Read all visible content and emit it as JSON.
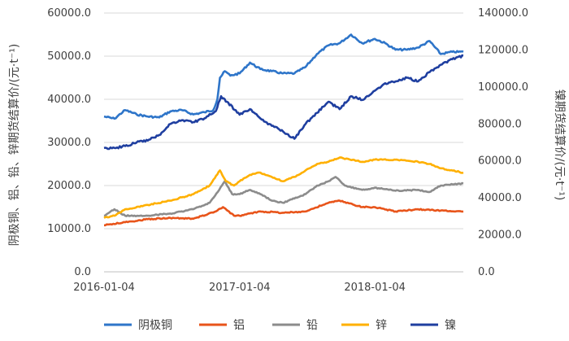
{
  "chart_data": {
    "type": "line",
    "title": "",
    "x_tick_labels": [
      "2016-01-04",
      "2017-01-04",
      "2018-01-04"
    ],
    "x_tick_dates": [
      "2016-01-04",
      "2017-01-04",
      "2018-01-04"
    ],
    "x_range": [
      "2016-01-04",
      "2018-08-31"
    ],
    "left_axis": {
      "label": "阴极铜、铝、铅、锌期货结算价/(元·t⁻¹)",
      "range": [
        0,
        60000
      ],
      "ticks": [
        "0.0",
        "10000.0",
        "20000.0",
        "30000.0",
        "40000.0",
        "50000.0",
        "60000.0"
      ]
    },
    "right_axis": {
      "label": "镍期货结算价/(元·t⁻¹)",
      "range": [
        0,
        140000
      ],
      "ticks": [
        "0.0",
        "20000.0",
        "40000.0",
        "60000.0",
        "80000.0",
        "100000.0",
        "120000.0",
        "140000.0"
      ]
    },
    "grid": true,
    "legend_position": "bottom",
    "series": [
      {
        "name": "阴极铜",
        "axis": "left",
        "color": "#2E75C9",
        "points": [
          [
            "2016-01-04",
            36000
          ],
          [
            "2016-02-01",
            35500
          ],
          [
            "2016-03-01",
            37500
          ],
          [
            "2016-04-01",
            36500
          ],
          [
            "2016-05-01",
            36000
          ],
          [
            "2016-06-01",
            35800
          ],
          [
            "2016-07-01",
            37200
          ],
          [
            "2016-08-01",
            37500
          ],
          [
            "2016-09-01",
            36500
          ],
          [
            "2016-10-01",
            37000
          ],
          [
            "2016-10-25",
            37500
          ],
          [
            "2016-11-05",
            40000
          ],
          [
            "2016-11-12",
            45000
          ],
          [
            "2016-11-25",
            46500
          ],
          [
            "2016-12-10",
            45500
          ],
          [
            "2017-01-04",
            46000
          ],
          [
            "2017-02-01",
            48500
          ],
          [
            "2017-03-01",
            47000
          ],
          [
            "2017-04-01",
            46500
          ],
          [
            "2017-05-01",
            46000
          ],
          [
            "2017-06-01",
            46000
          ],
          [
            "2017-07-01",
            47500
          ],
          [
            "2017-08-01",
            50500
          ],
          [
            "2017-09-01",
            52500
          ],
          [
            "2017-10-01",
            53000
          ],
          [
            "2017-11-01",
            55000
          ],
          [
            "2017-12-01",
            53000
          ],
          [
            "2018-01-04",
            54000
          ],
          [
            "2018-02-01",
            53000
          ],
          [
            "2018-03-01",
            51500
          ],
          [
            "2018-04-01",
            51500
          ],
          [
            "2018-05-01",
            52000
          ],
          [
            "2018-06-01",
            53500
          ],
          [
            "2018-07-01",
            50500
          ],
          [
            "2018-08-01",
            51000
          ],
          [
            "2018-08-31",
            51000
          ]
        ]
      },
      {
        "name": "铝",
        "axis": "left",
        "color": "#E8541A",
        "points": [
          [
            "2016-01-04",
            10800
          ],
          [
            "2016-03-01",
            11500
          ],
          [
            "2016-05-01",
            12200
          ],
          [
            "2016-07-01",
            12500
          ],
          [
            "2016-09-01",
            12300
          ],
          [
            "2016-11-01",
            14000
          ],
          [
            "2016-11-20",
            15000
          ],
          [
            "2016-12-20",
            13000
          ],
          [
            "2017-01-04",
            13000
          ],
          [
            "2017-03-01",
            14000
          ],
          [
            "2017-05-01",
            13700
          ],
          [
            "2017-07-01",
            14000
          ],
          [
            "2017-09-01",
            16000
          ],
          [
            "2017-10-01",
            16500
          ],
          [
            "2017-12-01",
            15000
          ],
          [
            "2018-01-04",
            15000
          ],
          [
            "2018-03-01",
            14000
          ],
          [
            "2018-05-01",
            14500
          ],
          [
            "2018-07-01",
            14200
          ],
          [
            "2018-08-31",
            14000
          ]
        ]
      },
      {
        "name": "铅",
        "axis": "left",
        "color": "#8C8C8C",
        "points": [
          [
            "2016-01-04",
            13000
          ],
          [
            "2016-02-01",
            14500
          ],
          [
            "2016-03-01",
            13000
          ],
          [
            "2016-05-01",
            13000
          ],
          [
            "2016-07-01",
            13500
          ],
          [
            "2016-09-01",
            14500
          ],
          [
            "2016-10-15",
            16000
          ],
          [
            "2016-11-10",
            19000
          ],
          [
            "2016-11-25",
            21000
          ],
          [
            "2016-12-15",
            18000
          ],
          [
            "2017-01-04",
            18000
          ],
          [
            "2017-02-01",
            19000
          ],
          [
            "2017-03-01",
            18000
          ],
          [
            "2017-04-01",
            16500
          ],
          [
            "2017-05-01",
            16000
          ],
          [
            "2017-06-01",
            17000
          ],
          [
            "2017-07-01",
            18000
          ],
          [
            "2017-08-01",
            20000
          ],
          [
            "2017-09-01",
            21000
          ],
          [
            "2017-09-20",
            22000
          ],
          [
            "2017-10-15",
            20000
          ],
          [
            "2017-12-01",
            19000
          ],
          [
            "2018-01-04",
            19500
          ],
          [
            "2018-03-01",
            18800
          ],
          [
            "2018-05-01",
            19000
          ],
          [
            "2018-06-01",
            18500
          ],
          [
            "2018-07-01",
            20000
          ],
          [
            "2018-08-31",
            20500
          ]
        ]
      },
      {
        "name": "锌",
        "axis": "left",
        "color": "#FFB000",
        "points": [
          [
            "2016-01-04",
            12500
          ],
          [
            "2016-02-01",
            13000
          ],
          [
            "2016-03-01",
            14500
          ],
          [
            "2016-05-01",
            15500
          ],
          [
            "2016-07-01",
            16500
          ],
          [
            "2016-09-01",
            18000
          ],
          [
            "2016-10-15",
            20000
          ],
          [
            "2016-11-12",
            23500
          ],
          [
            "2016-11-28",
            21000
          ],
          [
            "2016-12-20",
            20000
          ],
          [
            "2017-01-04",
            21000
          ],
          [
            "2017-02-01",
            22500
          ],
          [
            "2017-03-01",
            23000
          ],
          [
            "2017-04-01",
            22000
          ],
          [
            "2017-05-01",
            21000
          ],
          [
            "2017-06-01",
            22000
          ],
          [
            "2017-07-01",
            23500
          ],
          [
            "2017-08-01",
            25000
          ],
          [
            "2017-09-01",
            25500
          ],
          [
            "2017-10-01",
            26500
          ],
          [
            "2017-12-01",
            25500
          ],
          [
            "2018-01-04",
            26000
          ],
          [
            "2018-03-01",
            26000
          ],
          [
            "2018-05-01",
            25500
          ],
          [
            "2018-06-01",
            25000
          ],
          [
            "2018-07-01",
            24000
          ],
          [
            "2018-08-31",
            23000
          ]
        ]
      },
      {
        "name": "镍",
        "axis": "right",
        "color": "#1F3FA0",
        "points": [
          [
            "2016-01-04",
            67000
          ],
          [
            "2016-02-01",
            67000
          ],
          [
            "2016-03-01",
            68000
          ],
          [
            "2016-04-01",
            70000
          ],
          [
            "2016-05-01",
            71000
          ],
          [
            "2016-06-01",
            74000
          ],
          [
            "2016-07-01",
            80000
          ],
          [
            "2016-08-01",
            82000
          ],
          [
            "2016-09-01",
            81000
          ],
          [
            "2016-10-01",
            83000
          ],
          [
            "2016-11-01",
            87000
          ],
          [
            "2016-11-15",
            95000
          ],
          [
            "2016-12-01",
            92000
          ],
          [
            "2017-01-04",
            85000
          ],
          [
            "2017-02-01",
            88000
          ],
          [
            "2017-03-01",
            83000
          ],
          [
            "2017-04-01",
            79000
          ],
          [
            "2017-05-01",
            76000
          ],
          [
            "2017-06-01",
            72000
          ],
          [
            "2017-07-01",
            80000
          ],
          [
            "2017-08-01",
            86000
          ],
          [
            "2017-09-01",
            92000
          ],
          [
            "2017-10-01",
            88000
          ],
          [
            "2017-11-01",
            95000
          ],
          [
            "2017-12-01",
            93000
          ],
          [
            "2018-01-04",
            98000
          ],
          [
            "2018-02-01",
            102000
          ],
          [
            "2018-03-01",
            103000
          ],
          [
            "2018-04-01",
            105000
          ],
          [
            "2018-05-01",
            103000
          ],
          [
            "2018-06-01",
            108000
          ],
          [
            "2018-07-01",
            112000
          ],
          [
            "2018-08-01",
            115000
          ],
          [
            "2018-08-31",
            117000
          ]
        ]
      }
    ]
  }
}
